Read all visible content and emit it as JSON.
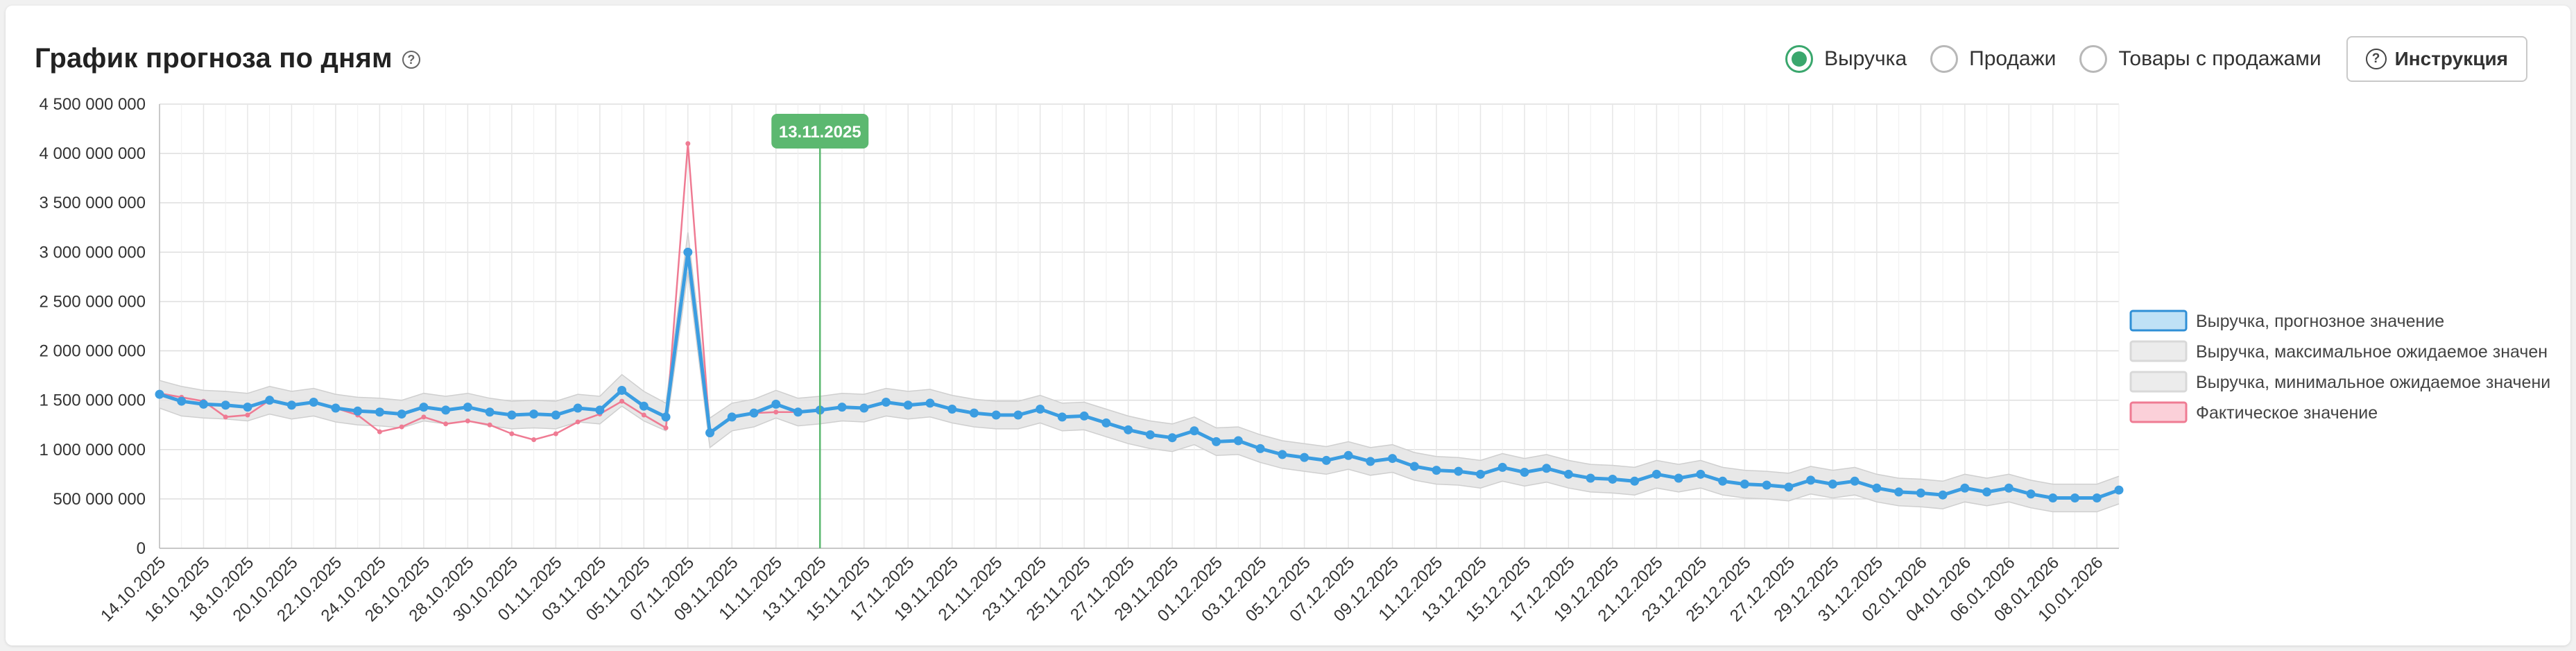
{
  "header": {
    "title": "График прогноза по дням",
    "help_icon": "question-circle-icon",
    "radio_options": [
      {
        "label": "Выручка",
        "selected": true
      },
      {
        "label": "Продажи",
        "selected": false
      },
      {
        "label": "Товары с продажами",
        "selected": false
      }
    ],
    "help_button_label": "Инструкция",
    "accent_color": "#3aa76d"
  },
  "chart_data": {
    "type": "line",
    "title": "",
    "xlabel": "",
    "ylabel": "",
    "ylim": [
      0,
      4500000000
    ],
    "yticks": [
      0,
      500000000,
      1000000000,
      1500000000,
      2000000000,
      2500000000,
      3000000000,
      3500000000,
      4000000000,
      4500000000
    ],
    "ytick_labels": [
      "0",
      "500 000 000",
      "1 000 000 000",
      "1 500 000 000",
      "2 000 000 000",
      "2 500 000 000",
      "3 000 000 000",
      "3 500 000 000",
      "4 000 000 000",
      "4 500 000 000"
    ],
    "x_start": "14.10.2025",
    "x_end": "11.01.2026",
    "x_labels": [
      "14.10.2025",
      "16.10.2025",
      "18.10.2025",
      "20.10.2025",
      "22.10.2025",
      "24.10.2025",
      "26.10.2025",
      "28.10.2025",
      "30.10.2025",
      "01.11.2025",
      "03.11.2025",
      "05.11.2025",
      "07.11.2025",
      "09.11.2025",
      "11.11.2025",
      "13.11.2025",
      "15.11.2025",
      "17.11.2025",
      "19.11.2025",
      "21.11.2025",
      "23.11.2025",
      "25.11.2025",
      "27.11.2025",
      "29.11.2025",
      "01.12.2025",
      "03.12.2025",
      "05.12.2025",
      "07.12.2025",
      "09.12.2025",
      "11.12.2025",
      "13.12.2025",
      "15.12.2025",
      "17.12.2025",
      "19.12.2025",
      "21.12.2025",
      "23.12.2025",
      "25.12.2025",
      "27.12.2025",
      "29.12.2025",
      "31.12.2025",
      "02.01.2026",
      "04.01.2026",
      "06.01.2026",
      "08.01.2026",
      "10.01.2026"
    ],
    "marker": {
      "date": "13.11.2025",
      "label": "13.11.2025",
      "color": "#5cb870"
    },
    "grid": true,
    "legend_position": "right",
    "series": [
      {
        "name": "Выручка, прогнозное значение",
        "color": "#3b9de1",
        "values": [
          1560000000,
          1490000000,
          1460000000,
          1450000000,
          1430000000,
          1500000000,
          1450000000,
          1480000000,
          1420000000,
          1390000000,
          1380000000,
          1360000000,
          1430000000,
          1400000000,
          1430000000,
          1380000000,
          1350000000,
          1360000000,
          1350000000,
          1420000000,
          1400000000,
          1600000000,
          1440000000,
          1330000000,
          3000000000,
          1170000000,
          1330000000,
          1370000000,
          1460000000,
          1380000000,
          1400000000,
          1430000000,
          1420000000,
          1480000000,
          1450000000,
          1470000000,
          1410000000,
          1370000000,
          1350000000,
          1350000000,
          1410000000,
          1330000000,
          1340000000,
          1270000000,
          1200000000,
          1150000000,
          1120000000,
          1190000000,
          1080000000,
          1090000000,
          1010000000,
          950000000,
          920000000,
          890000000,
          940000000,
          880000000,
          910000000,
          830000000,
          790000000,
          780000000,
          750000000,
          820000000,
          770000000,
          810000000,
          750000000,
          710000000,
          700000000,
          680000000,
          750000000,
          710000000,
          750000000,
          680000000,
          650000000,
          640000000,
          620000000,
          690000000,
          650000000,
          680000000,
          610000000,
          570000000,
          560000000,
          540000000,
          610000000,
          570000000,
          610000000,
          550000000,
          510000000,
          510000000,
          510000000,
          590000000
        ]
      },
      {
        "name": "Выручка, максимальное ожидаемое значен",
        "color": "#e6e6e6",
        "values": [
          1700000000,
          1640000000,
          1600000000,
          1590000000,
          1570000000,
          1640000000,
          1590000000,
          1620000000,
          1560000000,
          1530000000,
          1520000000,
          1500000000,
          1570000000,
          1540000000,
          1570000000,
          1520000000,
          1490000000,
          1500000000,
          1490000000,
          1560000000,
          1540000000,
          1760000000,
          1590000000,
          1470000000,
          3200000000,
          1320000000,
          1470000000,
          1510000000,
          1600000000,
          1520000000,
          1540000000,
          1570000000,
          1560000000,
          1620000000,
          1590000000,
          1610000000,
          1550000000,
          1510000000,
          1490000000,
          1490000000,
          1550000000,
          1470000000,
          1480000000,
          1410000000,
          1340000000,
          1290000000,
          1260000000,
          1330000000,
          1220000000,
          1230000000,
          1150000000,
          1090000000,
          1060000000,
          1030000000,
          1080000000,
          1020000000,
          1050000000,
          970000000,
          930000000,
          920000000,
          890000000,
          960000000,
          910000000,
          950000000,
          890000000,
          850000000,
          840000000,
          820000000,
          890000000,
          850000000,
          890000000,
          820000000,
          790000000,
          780000000,
          760000000,
          830000000,
          790000000,
          820000000,
          750000000,
          710000000,
          700000000,
          680000000,
          750000000,
          710000000,
          750000000,
          690000000,
          650000000,
          650000000,
          650000000,
          730000000
        ]
      },
      {
        "name": "Выручка, минимальное ожидаемое значени",
        "color": "#e6e6e6",
        "values": [
          1420000000,
          1340000000,
          1320000000,
          1310000000,
          1290000000,
          1360000000,
          1310000000,
          1340000000,
          1280000000,
          1250000000,
          1240000000,
          1220000000,
          1290000000,
          1260000000,
          1290000000,
          1240000000,
          1210000000,
          1220000000,
          1210000000,
          1280000000,
          1260000000,
          1440000000,
          1290000000,
          1190000000,
          2800000000,
          1020000000,
          1190000000,
          1230000000,
          1320000000,
          1240000000,
          1260000000,
          1290000000,
          1280000000,
          1340000000,
          1310000000,
          1330000000,
          1270000000,
          1230000000,
          1210000000,
          1210000000,
          1270000000,
          1190000000,
          1200000000,
          1130000000,
          1060000000,
          1010000000,
          980000000,
          1050000000,
          940000000,
          950000000,
          870000000,
          810000000,
          780000000,
          750000000,
          800000000,
          740000000,
          770000000,
          690000000,
          650000000,
          640000000,
          610000000,
          680000000,
          630000000,
          670000000,
          610000000,
          570000000,
          560000000,
          540000000,
          610000000,
          570000000,
          610000000,
          540000000,
          510000000,
          500000000,
          480000000,
          550000000,
          510000000,
          540000000,
          470000000,
          430000000,
          420000000,
          400000000,
          470000000,
          430000000,
          470000000,
          410000000,
          370000000,
          370000000,
          370000000,
          450000000
        ]
      },
      {
        "name": "Фактическое значение",
        "color": "#ef7b93",
        "values": [
          1570000000,
          1530000000,
          1490000000,
          1330000000,
          1350000000,
          1500000000,
          1460000000,
          1470000000,
          1420000000,
          1350000000,
          1180000000,
          1230000000,
          1330000000,
          1260000000,
          1290000000,
          1250000000,
          1160000000,
          1100000000,
          1160000000,
          1280000000,
          1360000000,
          1490000000,
          1350000000,
          1220000000,
          4100000000,
          1170000000,
          1330000000,
          1370000000,
          1380000000,
          1380000000,
          1400000000
        ]
      }
    ]
  }
}
